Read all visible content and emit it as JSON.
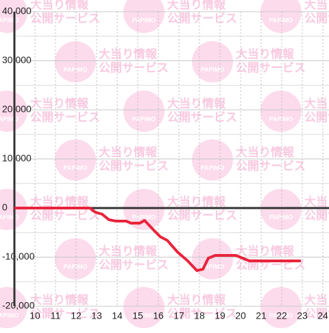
{
  "chart_data": {
    "type": "line",
    "watermark": {
      "brand": "PAPIMO",
      "line1": "大当り情報",
      "line2": "公開サービス"
    },
    "x": [
      9,
      12.67,
      12.93,
      13.27,
      13.6,
      13.93,
      14.43,
      14.67,
      15.1,
      15.33,
      15.77,
      16.1,
      16.43,
      16.93,
      17.43,
      17.87,
      18.17,
      18.43,
      18.77,
      19.77,
      20.43,
      22.93
    ],
    "series": [
      {
        "color": "#e8243c",
        "values": [
          0,
          0,
          -840,
          -1260,
          -2380,
          -2660,
          -2660,
          -3080,
          -3080,
          -2520,
          -4480,
          -5870,
          -6570,
          -8950,
          -10770,
          -12730,
          -12450,
          -10210,
          -9650,
          -9650,
          -10770,
          -10770
        ]
      }
    ],
    "xlim": [
      9,
      24.3
    ],
    "xticks": [
      10,
      11,
      12,
      13,
      14,
      15,
      16,
      17,
      18,
      19,
      20,
      21,
      22,
      23,
      24
    ],
    "ylim": [
      -20000,
      40000
    ],
    "yticks": [
      {
        "value": -20000,
        "label": "-20,000"
      },
      {
        "value": -10000,
        "label": "-10,000"
      },
      0,
      {
        "value": 10000,
        "label": "10,000"
      },
      {
        "value": 20000,
        "label": "20,000"
      },
      {
        "value": 30000,
        "label": "30,000"
      },
      {
        "value": 40000,
        "label": "40,000"
      }
    ],
    "grid": true
  }
}
